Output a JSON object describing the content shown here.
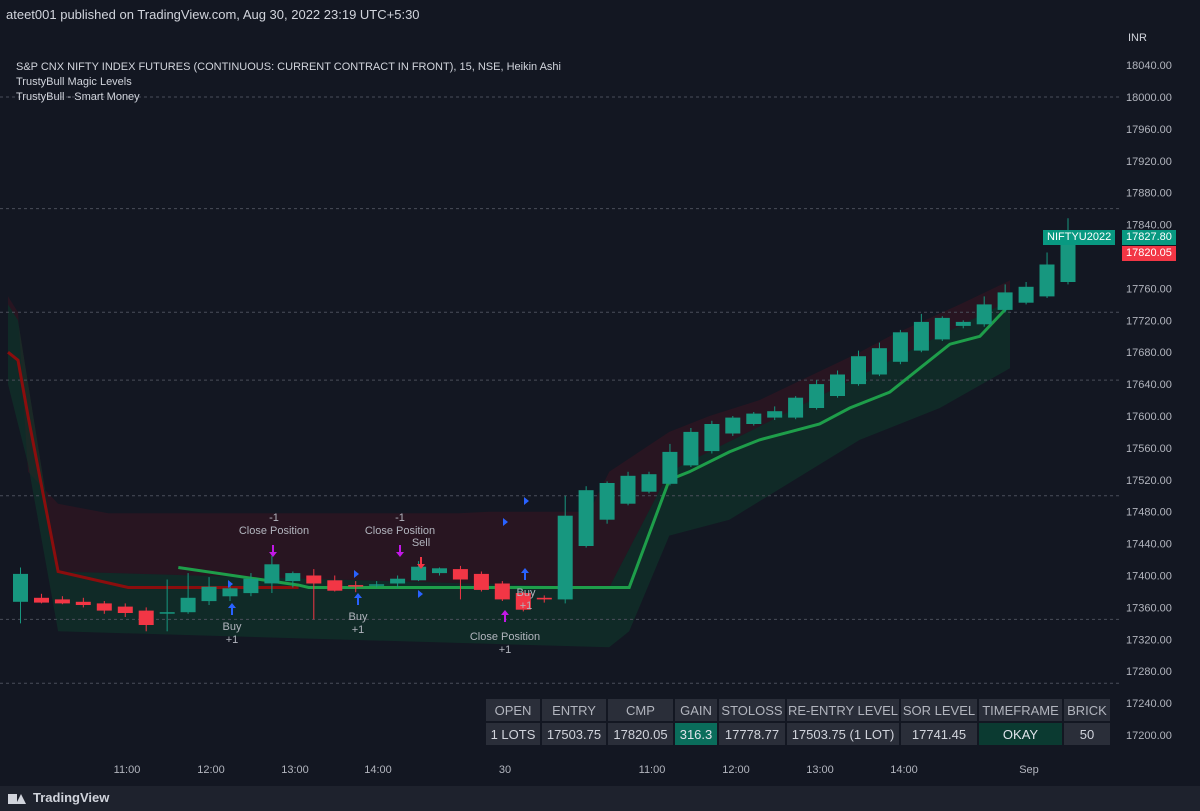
{
  "header": {
    "published": "ateet001 published on TradingView.com, Aug 30, 2022 23:19 UTC+5:30"
  },
  "legend": {
    "line1": "S&P CNX NIFTY INDEX FUTURES (CONTINUOUS: CURRENT CONTRACT IN FRONT), 15, NSE, Heikin Ashi",
    "line2": "TrustyBull Magic Levels",
    "line3": "TrustyBull - Smart Money"
  },
  "currency": "INR",
  "price_ticks": [
    "18040.00",
    "18000.00",
    "17960.00",
    "17920.00",
    "17880.00",
    "17840.00",
    "17800.00",
    "17760.00",
    "17720.00",
    "17680.00",
    "17640.00",
    "17600.00",
    "17560.00",
    "17520.00",
    "17480.00",
    "17440.00",
    "17400.00",
    "17360.00",
    "17320.00",
    "17280.00",
    "17240.00",
    "17200.00"
  ],
  "time_ticks": [
    "11:00",
    "12:00",
    "13:00",
    "14:00",
    "30",
    "11:00",
    "12:00",
    "13:00",
    "14:00",
    "Sep"
  ],
  "price_tags": {
    "symbol": "NIFTYU2022",
    "last": "17827.80",
    "second": "17820.05"
  },
  "colors": {
    "bull": "#26a69a",
    "bull_body": "#17977f",
    "bear": "#f23645",
    "line_green": "#1e9e4a",
    "line_red": "#8b0d0d",
    "signal_purple": "#c218e6",
    "signal_blue": "#2962ff"
  },
  "chart_annotations": [
    {
      "text": "-1",
      "kind": "sell"
    },
    {
      "text": "Close Position",
      "kind": "close"
    },
    {
      "text": "-1",
      "kind": "sell"
    },
    {
      "text": "Close Position",
      "kind": "close"
    },
    {
      "text": "Sell",
      "kind": "sell"
    },
    {
      "text": "Buy",
      "kind": "buy"
    },
    {
      "text": "+1",
      "kind": "buy"
    },
    {
      "text": "Buy",
      "kind": "buy"
    },
    {
      "text": "+1",
      "kind": "buy"
    },
    {
      "text": "Buy",
      "kind": "buy"
    },
    {
      "text": "+1",
      "kind": "buy"
    },
    {
      "text": "Close Position",
      "kind": "close"
    },
    {
      "text": "+1",
      "kind": "buy"
    }
  ],
  "table": {
    "headers": [
      "OPEN",
      "ENTRY",
      "CMP",
      "GAIN",
      "STOLOSS",
      "RE-ENTRY LEVEL",
      "SOR LEVEL",
      "TIMEFRAME",
      "BRICK"
    ],
    "values": [
      "1 LOTS",
      "17503.75",
      "17820.05",
      "316.3",
      "17778.77",
      "17503.75 (1 LOT)",
      "17741.45",
      "OKAY",
      "50"
    ]
  },
  "footer": {
    "brand": "TradingView"
  },
  "chart_data": {
    "type": "candlestick",
    "title": "S&P CNX NIFTY INDEX FUTURES (CONTINUOUS: CURRENT CONTRACT IN FRONT), 15, NSE, Heikin Ashi",
    "ylabel": "INR",
    "ylim": [
      17180,
      18080
    ],
    "grid": false,
    "dashed_levels": [
      18000,
      17860,
      17730,
      17645,
      17500,
      17345,
      17265
    ],
    "candles": [
      {
        "o": 17367,
        "h": 17410,
        "l": 17340,
        "c": 17402
      },
      {
        "o": 17372,
        "h": 17377,
        "l": 17365,
        "c": 17366
      },
      {
        "o": 17370,
        "h": 17374,
        "l": 17364,
        "c": 17365
      },
      {
        "o": 17367,
        "h": 17372,
        "l": 17360,
        "c": 17363
      },
      {
        "o": 17365,
        "h": 17368,
        "l": 17352,
        "c": 17356
      },
      {
        "o": 17361,
        "h": 17365,
        "l": 17348,
        "c": 17353
      },
      {
        "o": 17356,
        "h": 17360,
        "l": 17330,
        "c": 17338
      },
      {
        "o": 17354,
        "h": 17395,
        "l": 17330,
        "c": 17354
      },
      {
        "o": 17354,
        "h": 17403,
        "l": 17352,
        "c": 17372
      },
      {
        "o": 17368,
        "h": 17398,
        "l": 17363,
        "c": 17386
      },
      {
        "o": 17374,
        "h": 17389,
        "l": 17368,
        "c": 17384
      },
      {
        "o": 17378,
        "h": 17403,
        "l": 17374,
        "c": 17396
      },
      {
        "o": 17390,
        "h": 17425,
        "l": 17378,
        "c": 17414
      },
      {
        "o": 17393,
        "h": 17405,
        "l": 17385,
        "c": 17403
      },
      {
        "o": 17400,
        "h": 17408,
        "l": 17345,
        "c": 17390
      },
      {
        "o": 17394,
        "h": 17400,
        "l": 17380,
        "c": 17381
      },
      {
        "o": 17388,
        "h": 17393,
        "l": 17379,
        "c": 17387
      },
      {
        "o": 17389,
        "h": 17393,
        "l": 17385,
        "c": 17389
      },
      {
        "o": 17390,
        "h": 17400,
        "l": 17385,
        "c": 17396
      },
      {
        "o": 17394,
        "h": 17418,
        "l": 17393,
        "c": 17411
      },
      {
        "o": 17403,
        "h": 17410,
        "l": 17400,
        "c": 17409
      },
      {
        "o": 17408,
        "h": 17412,
        "l": 17370,
        "c": 17395
      },
      {
        "o": 17402,
        "h": 17405,
        "l": 17380,
        "c": 17382
      },
      {
        "o": 17390,
        "h": 17393,
        "l": 17368,
        "c": 17370
      },
      {
        "o": 17378,
        "h": 17380,
        "l": 17355,
        "c": 17357
      },
      {
        "o": 17372,
        "h": 17375,
        "l": 17366,
        "c": 17370
      },
      {
        "o": 17370,
        "h": 17500,
        "l": 17365,
        "c": 17475
      },
      {
        "o": 17437,
        "h": 17512,
        "l": 17435,
        "c": 17507
      },
      {
        "o": 17470,
        "h": 17518,
        "l": 17465,
        "c": 17516
      },
      {
        "o": 17490,
        "h": 17530,
        "l": 17488,
        "c": 17525
      },
      {
        "o": 17505,
        "h": 17530,
        "l": 17503,
        "c": 17527
      },
      {
        "o": 17515,
        "h": 17565,
        "l": 17513,
        "c": 17555
      },
      {
        "o": 17538,
        "h": 17585,
        "l": 17536,
        "c": 17580
      },
      {
        "o": 17556,
        "h": 17594,
        "l": 17553,
        "c": 17590
      },
      {
        "o": 17578,
        "h": 17600,
        "l": 17575,
        "c": 17598
      },
      {
        "o": 17590,
        "h": 17605,
        "l": 17588,
        "c": 17603
      },
      {
        "o": 17598,
        "h": 17612,
        "l": 17595,
        "c": 17606
      },
      {
        "o": 17598,
        "h": 17625,
        "l": 17596,
        "c": 17623
      },
      {
        "o": 17610,
        "h": 17645,
        "l": 17608,
        "c": 17640
      },
      {
        "o": 17625,
        "h": 17657,
        "l": 17623,
        "c": 17652
      },
      {
        "o": 17640,
        "h": 17682,
        "l": 17638,
        "c": 17675
      },
      {
        "o": 17652,
        "h": 17692,
        "l": 17650,
        "c": 17685
      },
      {
        "o": 17668,
        "h": 17708,
        "l": 17665,
        "c": 17705
      },
      {
        "o": 17682,
        "h": 17728,
        "l": 17680,
        "c": 17718
      },
      {
        "o": 17696,
        "h": 17725,
        "l": 17694,
        "c": 17723
      },
      {
        "o": 17713,
        "h": 17720,
        "l": 17710,
        "c": 17718
      },
      {
        "o": 17715,
        "h": 17750,
        "l": 17712,
        "c": 17740
      },
      {
        "o": 17733,
        "h": 17765,
        "l": 17730,
        "c": 17755
      },
      {
        "o": 17742,
        "h": 17768,
        "l": 17740,
        "c": 17762
      },
      {
        "o": 17750,
        "h": 17805,
        "l": 17748,
        "c": 17790
      },
      {
        "o": 17768,
        "h": 17848,
        "l": 17765,
        "c": 17827.8
      }
    ],
    "level_upper_red": [
      [
        0,
        17750
      ],
      [
        1,
        17730
      ],
      [
        2,
        17530
      ],
      [
        5,
        17490
      ],
      [
        10,
        17478
      ],
      [
        20,
        17478
      ],
      [
        30,
        17478
      ],
      [
        40,
        17478
      ],
      [
        45,
        17478
      ],
      [
        48,
        17480
      ],
      [
        50,
        17480
      ],
      [
        55,
        17480
      ],
      [
        58,
        17480
      ],
      [
        60,
        17530
      ],
      [
        66,
        17580
      ],
      [
        70,
        17600
      ],
      [
        75,
        17620
      ],
      [
        80,
        17650
      ],
      [
        85,
        17680
      ],
      [
        88,
        17700
      ],
      [
        95,
        17740
      ],
      [
        100,
        17770
      ]
    ],
    "green_line": [
      [
        17,
        17410
      ],
      [
        29,
        17388
      ],
      [
        30,
        17385
      ],
      [
        62,
        17385
      ],
      [
        66,
        17520
      ],
      [
        68,
        17530
      ],
      [
        72,
        17555
      ],
      [
        75,
        17570
      ],
      [
        78,
        17580
      ],
      [
        81,
        17590
      ],
      [
        84,
        17610
      ],
      [
        88,
        17630
      ],
      [
        91,
        17660
      ],
      [
        94,
        17690
      ],
      [
        97,
        17700
      ],
      [
        100,
        17740
      ]
    ],
    "red_line": [
      [
        0,
        17680
      ],
      [
        1,
        17670
      ],
      [
        2,
        17600
      ],
      [
        5,
        17405
      ],
      [
        12,
        17385
      ],
      [
        29,
        17385
      ]
    ]
  }
}
